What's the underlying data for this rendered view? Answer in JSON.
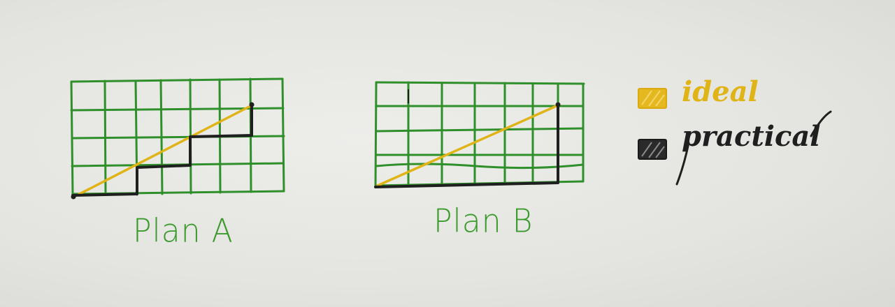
{
  "colors": {
    "grid": "#2f8f2a",
    "ideal": "#e0b417",
    "practical": "#1f1f1f",
    "label": "#3a9a2c"
  },
  "diagrams": [
    {
      "label": "Plan A"
    },
    {
      "label": "Plan B"
    }
  ],
  "legend": [
    {
      "label": "ideal",
      "color": "#e0b417",
      "icon": "hatched-swatch-icon"
    },
    {
      "label": "practical",
      "color": "#1f1f1f",
      "icon": "hatched-swatch-icon"
    }
  ]
}
